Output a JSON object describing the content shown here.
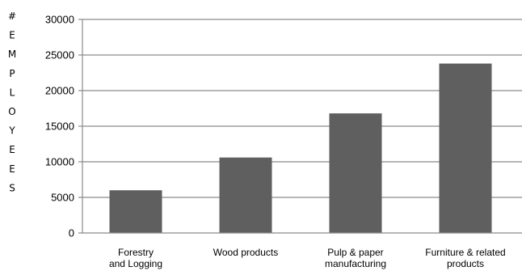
{
  "chart_data": {
    "type": "bar",
    "title": "",
    "xlabel": "",
    "ylabel": "# EMPLOYEES",
    "ylabel_letters": [
      "#",
      "E",
      "M",
      "P",
      "L",
      "O",
      "Y",
      "E",
      "E",
      "S"
    ],
    "ylim": [
      0,
      30000
    ],
    "yticks": [
      "0",
      "5000",
      "10000",
      "15000",
      "20000",
      "25000",
      "30000"
    ],
    "ytick_values": [
      0,
      5000,
      10000,
      15000,
      20000,
      25000,
      30000
    ],
    "grid": true,
    "categories": [
      [
        "Forestry",
        "and Logging"
      ],
      [
        "Wood products"
      ],
      [
        "Pulp & paper",
        "manufacturing"
      ],
      [
        "Furniture & related",
        "products"
      ]
    ],
    "values": [
      6000,
      10600,
      16800,
      23800
    ],
    "colors": {
      "bar": "#5f5f5f",
      "grid": "#8a8a8a",
      "axis": "#8a8a8a"
    }
  }
}
